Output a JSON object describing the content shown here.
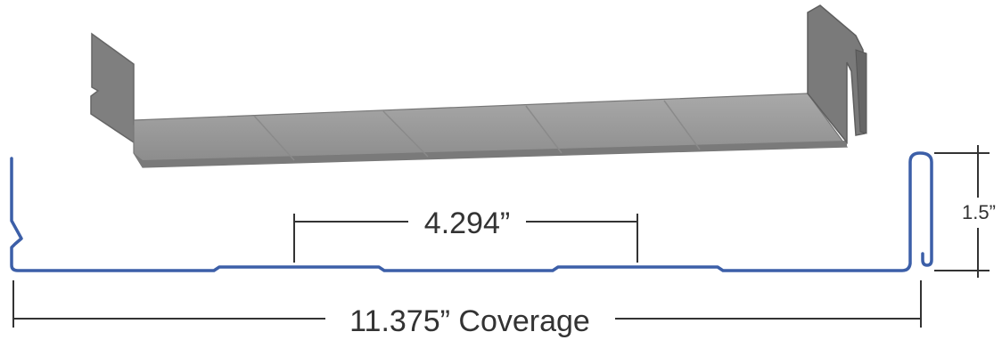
{
  "diagram": {
    "dimensions": {
      "rib_spacing": "4.294”",
      "rib_height": "1.5”",
      "coverage": "11.375” Coverage"
    },
    "colors": {
      "profile_line": "#3c5fa8",
      "dimension_line": "#333333",
      "panel_face": "#8f8f8f",
      "panel_top": "#a5a5a5",
      "panel_edge": "#5e5e5e"
    }
  }
}
